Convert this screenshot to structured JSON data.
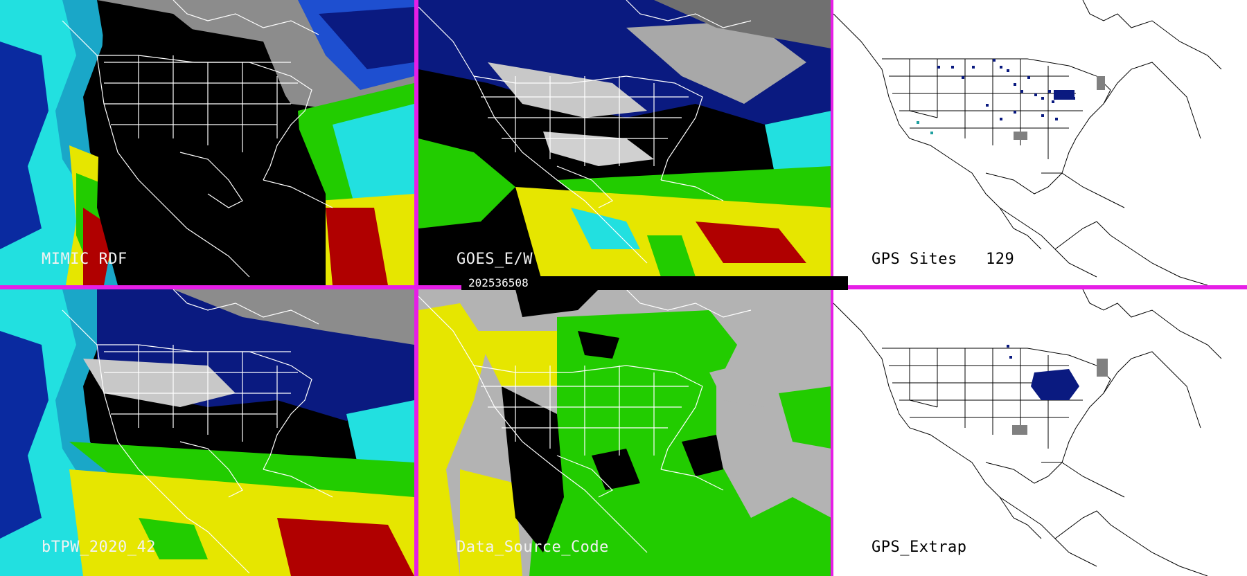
{
  "panels": {
    "mimic": {
      "label": "MIMIC RDF"
    },
    "goes": {
      "label": "GOES_E/W"
    },
    "gps_sites": {
      "label": "GPS Sites",
      "count": "129"
    },
    "btpw": {
      "label": "bTPW_2020_42"
    },
    "source": {
      "label": "Data_Source_Code"
    },
    "gps_extrap": {
      "label": "GPS_Extrap"
    }
  },
  "timestamp": "202536508",
  "colors": {
    "separator": "#e61ee6",
    "tpw_low": "#0a1a80",
    "tpw_mid": "#22e0e0",
    "tpw_high": "#ffee00",
    "tpw_max": "#b00000",
    "source_green": "#22cc00",
    "source_yellow": "#e6e600",
    "source_gray": "#b3b3b3",
    "gps_marker": "#0a1a80"
  }
}
